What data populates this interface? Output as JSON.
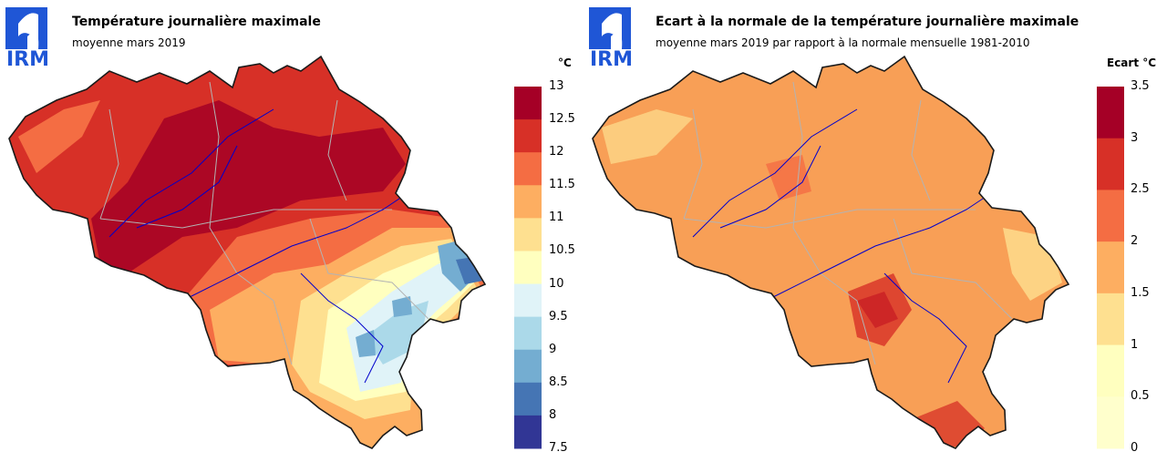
{
  "brand": "IRM",
  "colors": {
    "brand_blue": "#1f56d6",
    "border": "#000000",
    "province_border": "#b3b3b3",
    "river": "#0000cc"
  },
  "maps": [
    {
      "title": "Température journalière maximale",
      "subtitle": "moyenne mars 2019",
      "unit": "°C",
      "legend": {
        "ticks": [
          "13",
          "12.5",
          "12",
          "11.5",
          "11",
          "10.5",
          "10",
          "9.5",
          "9",
          "8.5",
          "8",
          "7.5"
        ],
        "colors": [
          "#a50026",
          "#d73027",
          "#f46d43",
          "#fdae61",
          "#fee090",
          "#ffffbf",
          "#e0f3f8",
          "#abd9e9",
          "#74add1",
          "#4575b4",
          "#313695"
        ]
      }
    },
    {
      "title": "Ecart à la normale de la température journalière maximale",
      "subtitle": "moyenne mars 2019 par rapport à la normale mensuelle 1981-2010",
      "unit": "Ecart °C",
      "legend": {
        "ticks": [
          "3.5",
          "3",
          "2.5",
          "2",
          "1.5",
          "1",
          "0.5",
          "0"
        ],
        "colors": [
          "#a50026",
          "#d73027",
          "#f46d43",
          "#fdae61",
          "#fee090",
          "#ffffbf",
          "#ffffcc"
        ]
      }
    }
  ]
}
